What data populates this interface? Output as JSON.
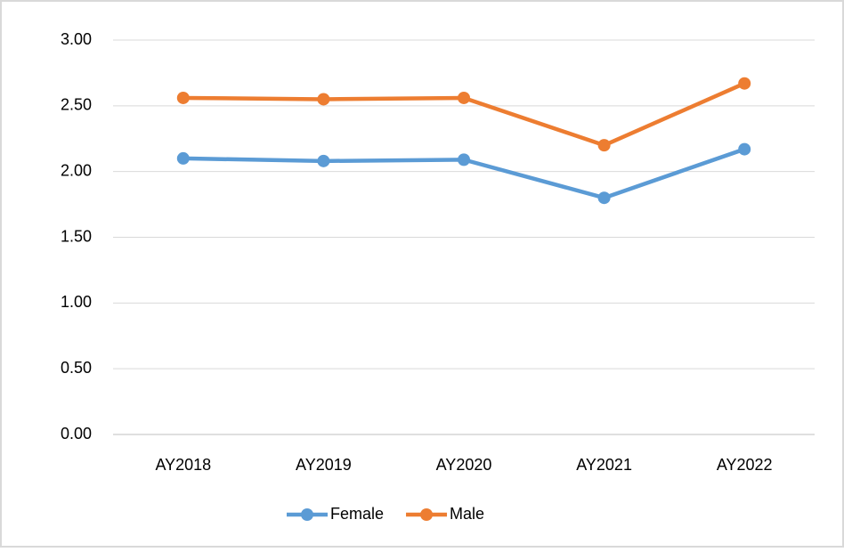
{
  "chart_data": {
    "type": "line",
    "categories": [
      "AY2018",
      "AY2019",
      "AY2020",
      "AY2021",
      "AY2022"
    ],
    "series": [
      {
        "name": "Female",
        "color": "#5b9bd5",
        "values": [
          2.1,
          2.08,
          2.09,
          1.8,
          2.17
        ]
      },
      {
        "name": "Male",
        "color": "#ed7d31",
        "values": [
          2.56,
          2.55,
          2.56,
          2.2,
          2.67
        ]
      }
    ],
    "ylim": [
      0,
      3
    ],
    "yticks": [
      {
        "value": 0,
        "label": "0.00"
      },
      {
        "value": 0.5,
        "label": "0.50"
      },
      {
        "value": 1,
        "label": "1.00"
      },
      {
        "value": 1.5,
        "label": "1.50"
      },
      {
        "value": 2,
        "label": "2.00"
      },
      {
        "value": 2.5,
        "label": "2.50"
      },
      {
        "value": 3,
        "label": "3.00"
      }
    ],
    "grid": true,
    "legend": "bottom"
  }
}
